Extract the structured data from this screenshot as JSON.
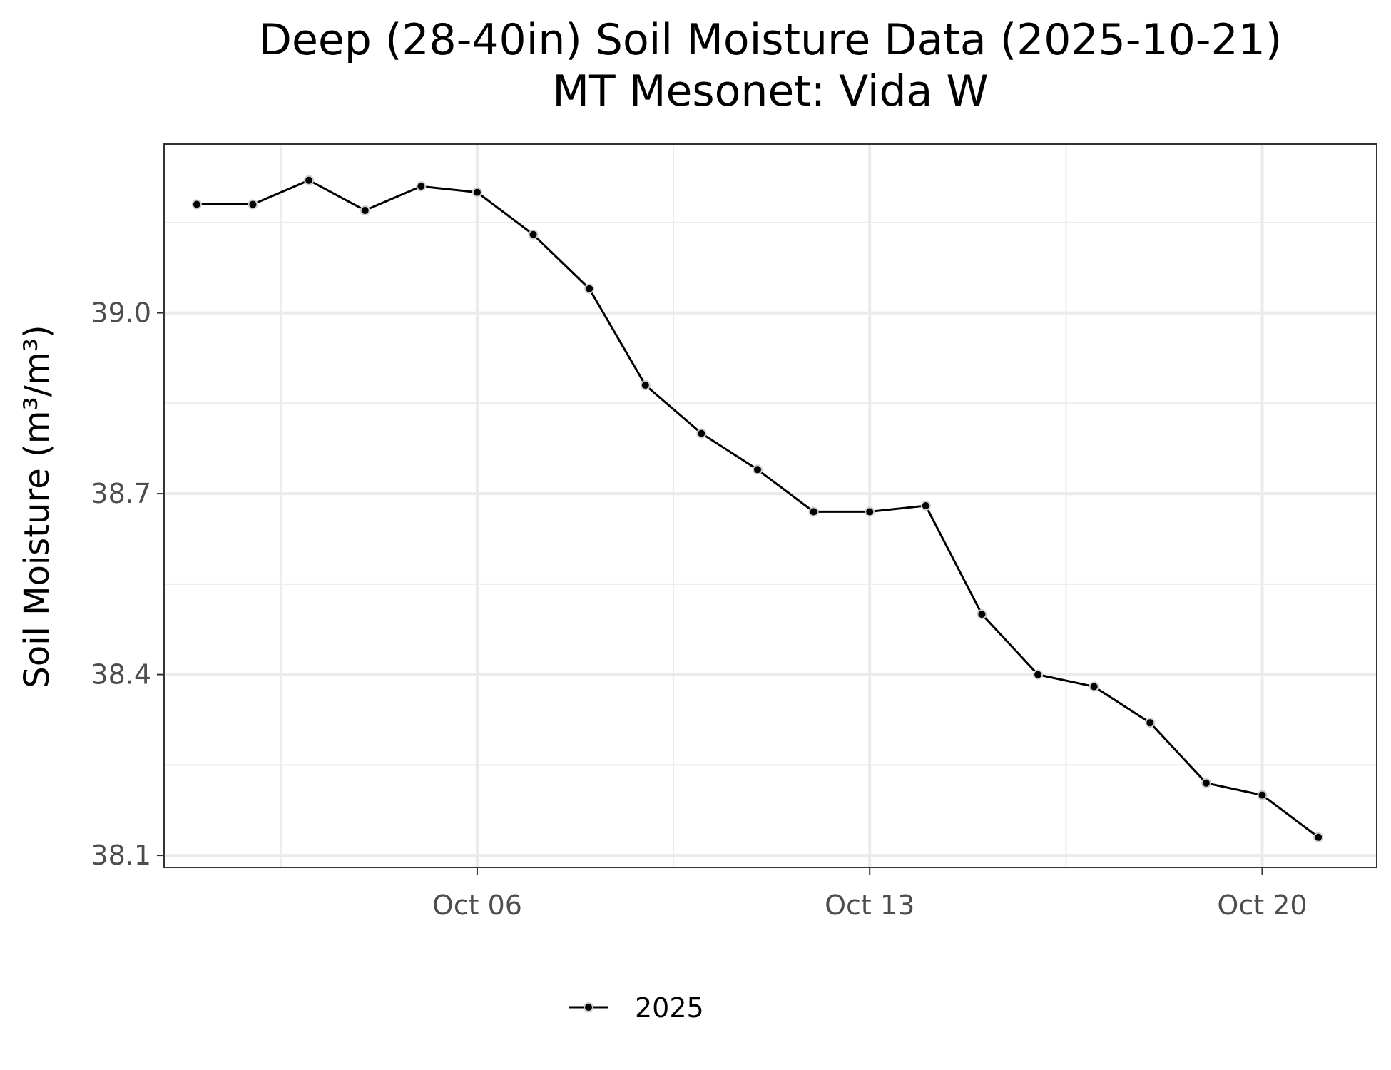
{
  "chart_data": {
    "type": "line",
    "title": "Deep (28-40in) Soil Moisture Data (2025-10-21)",
    "subtitle": "MT Mesonet: Vida W",
    "xlabel": "",
    "ylabel": "Soil Moisture (m³/m³)",
    "x_ticks": [
      "Oct 06",
      "Oct 13",
      "Oct 20"
    ],
    "y_ticks": [
      38.1,
      38.4,
      38.7,
      39.0
    ],
    "y_tick_labels": [
      "38.1",
      "38.4",
      "38.7",
      "39.0"
    ],
    "xlim": [
      "2025-09-30T10:00",
      "2025-10-22T01:00"
    ],
    "ylim": [
      38.08,
      39.28
    ],
    "grid": true,
    "legend_position": "bottom",
    "x": [
      "2025-10-01",
      "2025-10-02",
      "2025-10-03",
      "2025-10-04",
      "2025-10-05",
      "2025-10-06",
      "2025-10-07",
      "2025-10-08",
      "2025-10-09",
      "2025-10-10",
      "2025-10-11",
      "2025-10-12",
      "2025-10-13",
      "2025-10-14",
      "2025-10-15",
      "2025-10-16",
      "2025-10-17",
      "2025-10-18",
      "2025-10-19",
      "2025-10-20",
      "2025-10-21"
    ],
    "series": [
      {
        "name": "2025",
        "color": "#000000",
        "values": [
          39.18,
          39.18,
          39.22,
          39.17,
          39.21,
          39.2,
          39.13,
          39.04,
          38.88,
          38.8,
          38.74,
          38.67,
          38.67,
          38.68,
          38.5,
          38.4,
          38.38,
          38.32,
          38.22,
          38.2,
          38.13
        ]
      }
    ]
  }
}
